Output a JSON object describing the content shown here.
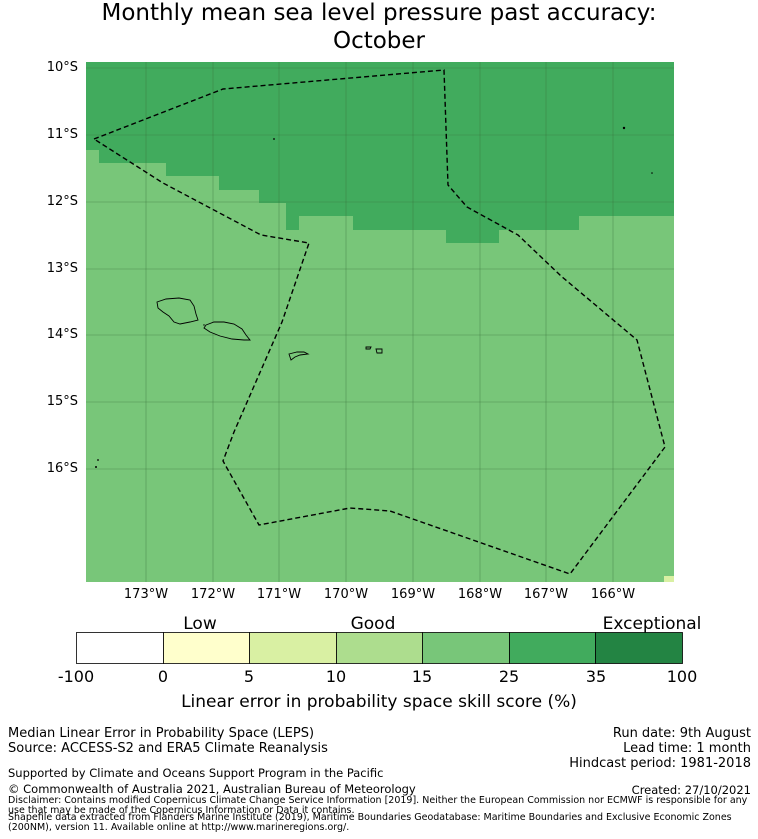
{
  "title": {
    "line1": "Monthly mean sea level pressure past accuracy:",
    "line2": "October"
  },
  "map": {
    "lat_labels": [
      "10°S",
      "11°S",
      "12°S",
      "13°S",
      "14°S",
      "15°S",
      "16°S"
    ],
    "lon_labels": [
      "173°W",
      "172°W",
      "171°W",
      "170°W",
      "169°W",
      "168°W",
      "167°W",
      "166°W"
    ],
    "colors": {
      "skill_15_25": "#78c679",
      "skill_25_35": "#41ab5d",
      "boundary": "#000000"
    }
  },
  "colorbar": {
    "categories": [
      "Low",
      "Good",
      "Exceptional"
    ],
    "tick_labels": [
      "-100",
      "0",
      "5",
      "10",
      "15",
      "25",
      "35",
      "100"
    ],
    "colors": [
      "#ffffff",
      "#ffffcc",
      "#d9f0a3",
      "#addd8e",
      "#78c679",
      "#41ab5d",
      "#238443"
    ],
    "label": "Linear error in probability space skill score (%)"
  },
  "footer": {
    "method": "Median Linear Error in Probability Space (LEPS)",
    "source": "Source: ACCESS-S2 and ERA5 Climate Reanalysis",
    "run_date": "Run date: 9th August",
    "lead_time": "Lead time: 1 month",
    "hindcast": "Hindcast period: 1981-2018",
    "support": "Supported by Climate and Oceans Support Program in the Pacific",
    "copyright": "© Commonwealth of Australia 2021, Australian Bureau of Meteorology",
    "created": "Created: 27/10/2021",
    "disclaimer1": "Disclaimer: Contains modified Copernicus Climate Change Service Information [2019]. Neither the European Commission nor ECMWF is responsible for any use that may be made of the Copernicus Information or Data it contains.",
    "disclaimer2": "Shapefile data extracted from Flanders Marine Institute (2019), Maritime Boundaries Geodatabase: Maritime Boundaries and Exclusive Economic Zones (200NM), version 11. Available online at http://www.marineregions.org/."
  }
}
